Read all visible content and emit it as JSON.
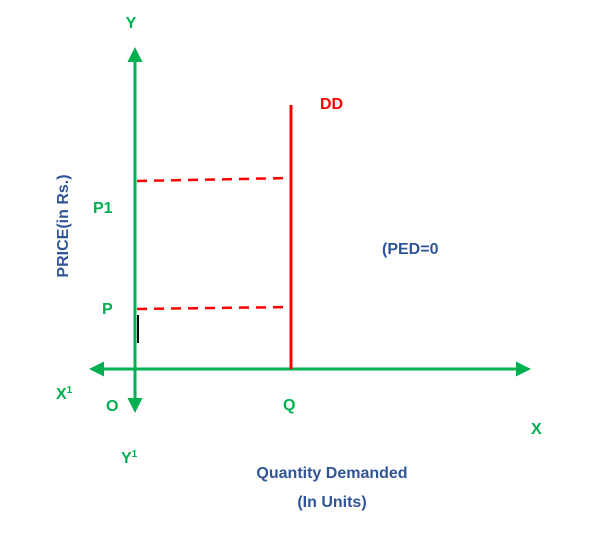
{
  "colors": {
    "axis": "#00b050",
    "curve": "#ff0000",
    "label_green": "#00b050",
    "label_blue": "#2f5597",
    "label_red": "#ff0000",
    "background": "#ffffff"
  },
  "axes": {
    "y_label": "Y",
    "y_prime_label": "Y",
    "y_prime_sup": "1",
    "x_label": "X",
    "x_prime_label": "X",
    "x_prime_sup": "1",
    "origin_label": "O",
    "y_axis_title": "PRICE(in Rs.)",
    "x_axis_title_line1": "Quantity Demanded",
    "x_axis_title_line2": "(In Units)"
  },
  "curve": {
    "label": "DD",
    "annotation": "(PED=0"
  },
  "points": {
    "p1_label": "P1",
    "p_label": "P",
    "q_label": "Q"
  }
}
